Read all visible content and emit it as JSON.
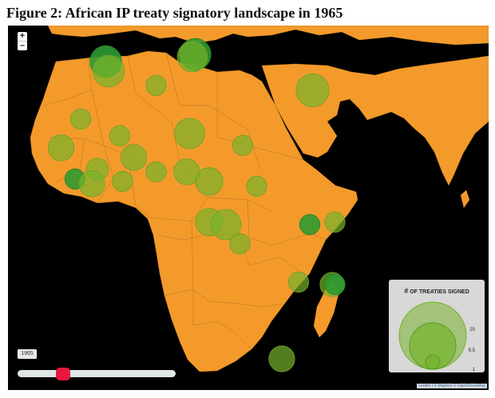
{
  "title": "Figure 2: African IP treaty signatory landscape in 1965",
  "zoom": {
    "in_label": "+",
    "out_label": "–"
  },
  "timeline": {
    "year": "1965",
    "min_year": 1945,
    "max_year": 2015,
    "value": 1965
  },
  "legend": {
    "title_hash": "#",
    "title_rest": "OF TREATIES SIGNED",
    "max_label": "20",
    "mid_label": "9.5",
    "min_label": "1"
  },
  "attribution": "Leaflet | © Mapbox © OpenStreetMap",
  "colors": {
    "land": "#f39a2b",
    "sea": "#000000",
    "bubble": "#76b32b",
    "bubble_dark": "#2f9a31",
    "slider": "#e8173d"
  },
  "bubbles": [
    {
      "lon": -6.5,
      "lat": 32.5,
      "count": 10,
      "tone": "dark"
    },
    {
      "lon": -6.0,
      "lat": 30.5,
      "count": 10,
      "tone": "light"
    },
    {
      "lon": 9.5,
      "lat": 34.0,
      "count": 10,
      "tone": "dark"
    },
    {
      "lon": 9.0,
      "lat": 33.5,
      "count": 9,
      "tone": "light"
    },
    {
      "lon": 2.5,
      "lat": 27.5,
      "count": 3,
      "tone": "light"
    },
    {
      "lon": 30.5,
      "lat": 26.5,
      "count": 11,
      "tone": "light"
    },
    {
      "lon": -11.0,
      "lat": 20.5,
      "count": 3,
      "tone": "light"
    },
    {
      "lon": -4.0,
      "lat": 17.0,
      "count": 3,
      "tone": "light"
    },
    {
      "lon": 8.5,
      "lat": 17.5,
      "count": 9,
      "tone": "light"
    },
    {
      "lon": 18.0,
      "lat": 15.0,
      "count": 3,
      "tone": "light"
    },
    {
      "lon": -14.5,
      "lat": 14.5,
      "count": 6,
      "tone": "light"
    },
    {
      "lon": -1.5,
      "lat": 12.5,
      "count": 6,
      "tone": "light"
    },
    {
      "lon": -8.0,
      "lat": 10.0,
      "count": 4,
      "tone": "light"
    },
    {
      "lon": 2.5,
      "lat": 9.5,
      "count": 3,
      "tone": "light"
    },
    {
      "lon": 8.0,
      "lat": 9.5,
      "count": 6,
      "tone": "light"
    },
    {
      "lon": 12.0,
      "lat": 7.5,
      "count": 7,
      "tone": "light"
    },
    {
      "lon": -12.0,
      "lat": 8.0,
      "count": 3,
      "tone": "dark"
    },
    {
      "lon": -9.0,
      "lat": 7.0,
      "count": 6,
      "tone": "light"
    },
    {
      "lon": -3.5,
      "lat": 7.5,
      "count": 3,
      "tone": "light"
    },
    {
      "lon": 20.5,
      "lat": 6.5,
      "count": 3,
      "tone": "light"
    },
    {
      "lon": 12.0,
      "lat": -1.0,
      "count": 7,
      "tone": "light"
    },
    {
      "lon": 15.0,
      "lat": -1.5,
      "count": 9,
      "tone": "light"
    },
    {
      "lon": 17.5,
      "lat": -5.5,
      "count": 3,
      "tone": "light"
    },
    {
      "lon": 30.0,
      "lat": -1.5,
      "count": 3,
      "tone": "dark"
    },
    {
      "lon": 34.5,
      "lat": -1.0,
      "count": 3,
      "tone": "light"
    },
    {
      "lon": 28.0,
      "lat": -13.5,
      "count": 3,
      "tone": "light"
    },
    {
      "lon": 34.0,
      "lat": -14.0,
      "count": 5,
      "tone": "light"
    },
    {
      "lon": 34.5,
      "lat": -14.0,
      "count": 3,
      "tone": "dark"
    },
    {
      "lon": 47.0,
      "lat": -19.0,
      "count": 3,
      "tone": "light"
    },
    {
      "lon": 25.0,
      "lat": -29.5,
      "count": 6,
      "tone": "light"
    }
  ]
}
